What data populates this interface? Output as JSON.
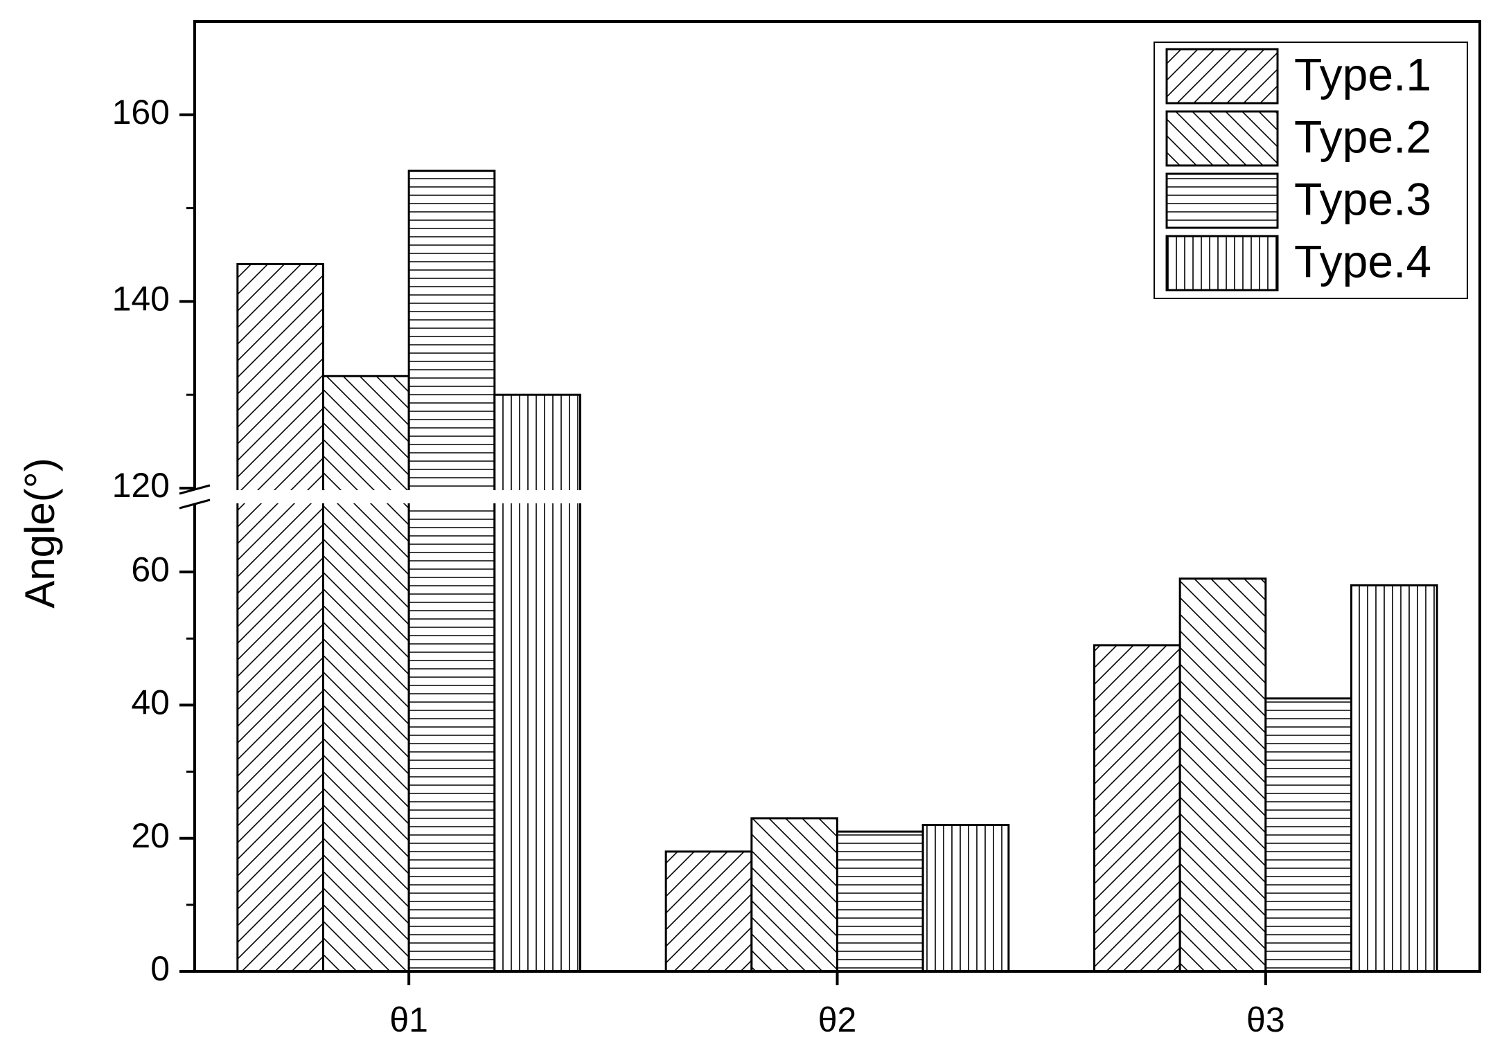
{
  "chart_data": {
    "type": "bar",
    "ylabel": "Angle(°)",
    "categories": [
      "θ1",
      "θ2",
      "θ3"
    ],
    "series": [
      {
        "name": "Type.1",
        "color": "#000000",
        "pattern": "diagonal-up",
        "values": [
          144,
          18,
          49
        ]
      },
      {
        "name": "Type.2",
        "color": "#000000",
        "pattern": "diagonal-down",
        "values": [
          132,
          23,
          59
        ]
      },
      {
        "name": "Type.3",
        "color": "#000000",
        "pattern": "horizontal",
        "values": [
          154,
          21,
          41
        ]
      },
      {
        "name": "Type.4",
        "color": "#000000",
        "pattern": "vertical",
        "values": [
          130,
          22,
          58
        ]
      }
    ],
    "ylim": [
      0,
      170
    ],
    "y_break": [
      70,
      120
    ],
    "yticks": [
      0,
      20,
      40,
      60,
      120,
      140,
      160
    ],
    "yminorticks": [
      10,
      30,
      50,
      130,
      150
    ],
    "legend": "top-right"
  }
}
